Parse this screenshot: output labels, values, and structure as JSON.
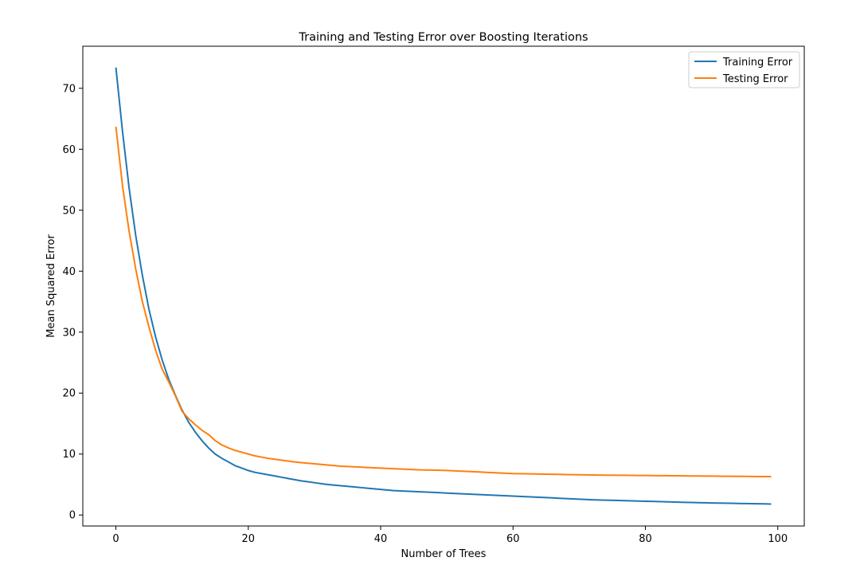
{
  "chart_data": {
    "type": "line",
    "title": "Training and Testing Error over Boosting Iterations",
    "xlabel": "Number of Trees",
    "ylabel": "Mean Squared Error",
    "xlim": [
      -5,
      104
    ],
    "ylim": [
      -1.8,
      76.9
    ],
    "xticks": [
      0,
      20,
      40,
      60,
      80,
      100
    ],
    "yticks": [
      0,
      10,
      20,
      30,
      40,
      50,
      60,
      70
    ],
    "grid": false,
    "legend_position": "top-right",
    "x": [
      0,
      1,
      2,
      3,
      4,
      5,
      6,
      7,
      8,
      9,
      10,
      11,
      12,
      13,
      14,
      15,
      16,
      17,
      18,
      19,
      20,
      21,
      22,
      23,
      24,
      25,
      26,
      27,
      28,
      29,
      30,
      31,
      32,
      33,
      34,
      35,
      36,
      37,
      38,
      39,
      40,
      41,
      42,
      43,
      44,
      45,
      46,
      47,
      48,
      49,
      50,
      51,
      52,
      53,
      54,
      55,
      56,
      57,
      58,
      59,
      60,
      61,
      62,
      63,
      64,
      65,
      66,
      67,
      68,
      69,
      70,
      71,
      72,
      73,
      74,
      75,
      76,
      77,
      78,
      79,
      80,
      81,
      82,
      83,
      84,
      85,
      86,
      87,
      88,
      89,
      90,
      91,
      92,
      93,
      94,
      95,
      96,
      97,
      98,
      99
    ],
    "series": [
      {
        "name": "Training Error",
        "color": "#1f77b4",
        "values": [
          73.4,
          62.9,
          53.6,
          45.8,
          39.3,
          33.7,
          29.2,
          25.4,
          22.2,
          19.6,
          17.2,
          15.2,
          13.6,
          12.2,
          11.0,
          10.0,
          9.3,
          8.7,
          8.1,
          7.7,
          7.3,
          7.0,
          6.8,
          6.6,
          6.4,
          6.2,
          6.0,
          5.8,
          5.6,
          5.45,
          5.3,
          5.15,
          5.0,
          4.9,
          4.8,
          4.7,
          4.6,
          4.5,
          4.4,
          4.3,
          4.2,
          4.1,
          4.0,
          3.95,
          3.9,
          3.85,
          3.8,
          3.75,
          3.7,
          3.65,
          3.6,
          3.55,
          3.5,
          3.45,
          3.4,
          3.35,
          3.3,
          3.25,
          3.2,
          3.15,
          3.1,
          3.05,
          3.0,
          2.95,
          2.9,
          2.85,
          2.8,
          2.75,
          2.7,
          2.65,
          2.6,
          2.55,
          2.5,
          2.47,
          2.44,
          2.41,
          2.38,
          2.35,
          2.32,
          2.29,
          2.26,
          2.23,
          2.2,
          2.17,
          2.14,
          2.11,
          2.08,
          2.05,
          2.02,
          2.0,
          1.98,
          1.96,
          1.94,
          1.92,
          1.9,
          1.88,
          1.86,
          1.84,
          1.82,
          1.8
        ]
      },
      {
        "name": "Testing Error",
        "color": "#ff7f0e",
        "values": [
          63.7,
          54.0,
          46.5,
          40.3,
          35.0,
          30.8,
          27.0,
          23.9,
          21.8,
          19.5,
          17.0,
          15.8,
          14.8,
          13.9,
          13.2,
          12.2,
          11.5,
          11.0,
          10.6,
          10.3,
          10.0,
          9.7,
          9.5,
          9.3,
          9.15,
          9.0,
          8.85,
          8.7,
          8.6,
          8.5,
          8.4,
          8.3,
          8.2,
          8.1,
          8.0,
          7.95,
          7.9,
          7.85,
          7.8,
          7.75,
          7.7,
          7.65,
          7.6,
          7.55,
          7.5,
          7.45,
          7.4,
          7.38,
          7.36,
          7.34,
          7.3,
          7.25,
          7.2,
          7.15,
          7.1,
          7.05,
          7.0,
          6.95,
          6.9,
          6.85,
          6.8,
          6.78,
          6.76,
          6.74,
          6.72,
          6.7,
          6.68,
          6.66,
          6.64,
          6.62,
          6.6,
          6.58,
          6.56,
          6.55,
          6.54,
          6.53,
          6.52,
          6.51,
          6.5,
          6.49,
          6.48,
          6.47,
          6.46,
          6.45,
          6.44,
          6.43,
          6.42,
          6.41,
          6.4,
          6.39,
          6.38,
          6.37,
          6.36,
          6.35,
          6.34,
          6.33,
          6.32,
          6.31,
          6.3,
          6.3
        ]
      }
    ]
  }
}
